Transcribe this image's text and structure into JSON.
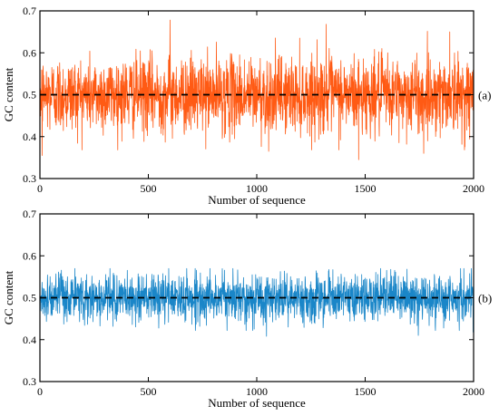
{
  "chart_data": [
    {
      "type": "line",
      "panel_label": "(a)",
      "xlabel": "Number of sequence",
      "ylabel": "GC content",
      "xlim": [
        0,
        2000
      ],
      "ylim": [
        0.3,
        0.7
      ],
      "xticks": [
        0,
        500,
        1000,
        1500,
        2000
      ],
      "yticks": [
        0.3,
        0.4,
        0.5,
        0.6,
        0.7
      ],
      "xtick_labels": [
        "0",
        "500",
        "1000",
        "1500",
        "2000"
      ],
      "ytick_labels": [
        "0.3",
        "0.4",
        "0.5",
        "0.6",
        "0.7"
      ],
      "grid": false,
      "reference_line": {
        "y": 0.5,
        "style": "dashed",
        "color": "#000000"
      },
      "series": [
        {
          "color": "#ff5a14",
          "n_points": 2000,
          "mean": 0.5,
          "spread": 0.045,
          "min": 0.345,
          "max": 0.678,
          "notable_points": [
            {
              "x": 10,
              "y": 0.355
            },
            {
              "x": 600,
              "y": 0.678
            },
            {
              "x": 1055,
              "y": 0.365
            },
            {
              "x": 1320,
              "y": 0.668
            },
            {
              "x": 1470,
              "y": 0.345
            },
            {
              "x": 1770,
              "y": 0.36
            },
            {
              "x": 1890,
              "y": 0.65
            }
          ]
        }
      ]
    },
    {
      "type": "line",
      "panel_label": "(b)",
      "xlabel": "Number of sequence",
      "ylabel": "GC content",
      "xlim": [
        0,
        2000
      ],
      "ylim": [
        0.3,
        0.7
      ],
      "xticks": [
        0,
        500,
        1000,
        1500,
        2000
      ],
      "yticks": [
        0.3,
        0.4,
        0.5,
        0.6,
        0.7
      ],
      "xtick_labels": [
        "0",
        "500",
        "1000",
        "1500",
        "2000"
      ],
      "ytick_labels": [
        "0.3",
        "0.4",
        "0.5",
        "0.6",
        "0.7"
      ],
      "grid": false,
      "reference_line": {
        "y": 0.5,
        "style": "dashed",
        "color": "#000000"
      },
      "series": [
        {
          "color": "#1a86c8",
          "n_points": 2000,
          "mean": 0.5,
          "spread": 0.028,
          "min": 0.408,
          "max": 0.582,
          "notable_points": [
            {
              "x": 1045,
              "y": 0.408
            },
            {
              "x": 1745,
              "y": 0.41
            },
            {
              "x": 1998,
              "y": 0.418
            }
          ]
        }
      ]
    }
  ]
}
